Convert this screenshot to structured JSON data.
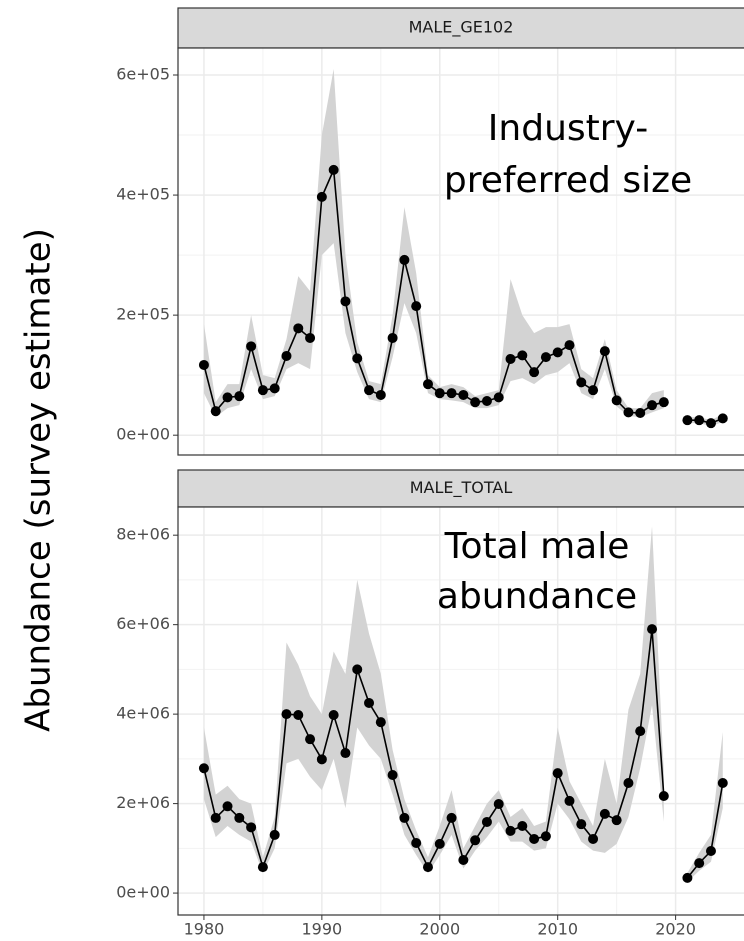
{
  "y_label": "Abundance (survey estimate)",
  "chart_data": [
    {
      "type": "line",
      "strip": "MALE_GE102",
      "annotation": [
        "Industry-",
        "preferred size"
      ],
      "color": "#000000",
      "ribbon_color": "#d3d3d3",
      "grid": true,
      "x": [
        1980,
        1981,
        1982,
        1983,
        1984,
        1985,
        1986,
        1987,
        1988,
        1989,
        1990,
        1991,
        1992,
        1993,
        1994,
        1995,
        1996,
        1997,
        1998,
        1999,
        2000,
        2001,
        2002,
        2003,
        2004,
        2005,
        2006,
        2007,
        2008,
        2009,
        2010,
        2011,
        2012,
        2013,
        2014,
        2015,
        2016,
        2017,
        2018,
        2019,
        2020,
        2021,
        2022,
        2023,
        2024
      ],
      "values": [
        117000,
        40000,
        63000,
        65000,
        148000,
        75000,
        78000,
        132000,
        178000,
        162000,
        397000,
        442000,
        223000,
        128000,
        75000,
        67000,
        162000,
        292000,
        215000,
        85000,
        70000,
        70000,
        67000,
        55000,
        57000,
        63000,
        127000,
        133000,
        105000,
        130000,
        138000,
        150000,
        88000,
        75000,
        140000,
        58000,
        38000,
        37000,
        50000,
        55000,
        null,
        25000,
        25000,
        20000,
        28000
      ],
      "upper": [
        185000,
        55000,
        85000,
        85000,
        200000,
        100000,
        95000,
        160000,
        265000,
        240000,
        500000,
        610000,
        300000,
        155000,
        90000,
        85000,
        200000,
        380000,
        270000,
        100000,
        80000,
        85000,
        80000,
        65000,
        70000,
        75000,
        260000,
        200000,
        170000,
        180000,
        180000,
        185000,
        110000,
        95000,
        160000,
        75000,
        45000,
        45000,
        70000,
        75000,
        null,
        30000,
        30000,
        25000,
        35000
      ],
      "lower": [
        70000,
        30000,
        45000,
        50000,
        110000,
        60000,
        65000,
        110000,
        120000,
        110000,
        300000,
        320000,
        170000,
        105000,
        60000,
        55000,
        130000,
        220000,
        170000,
        70000,
        60000,
        58000,
        55000,
        45000,
        45000,
        50000,
        90000,
        95000,
        85000,
        100000,
        105000,
        120000,
        70000,
        60000,
        110000,
        48000,
        32000,
        30000,
        38000,
        45000,
        null,
        20000,
        20000,
        15000,
        22000
      ],
      "xlim": [
        1977.8,
        2025.8
      ],
      "xticks": [
        1980,
        1990,
        2000,
        2010,
        2020
      ],
      "ylim": [
        -33000,
        645000
      ],
      "yticks": [
        {
          "value": 0,
          "label": "0e+00"
        },
        {
          "value": 200000,
          "label": "2e+05"
        },
        {
          "value": 400000,
          "label": "4e+05"
        },
        {
          "value": 600000,
          "label": "6e+05"
        }
      ]
    },
    {
      "type": "line",
      "strip": "MALE_TOTAL",
      "annotation": [
        "Total male",
        "abundance"
      ],
      "color": "#000000",
      "ribbon_color": "#d3d3d3",
      "grid": true,
      "x": [
        1980,
        1981,
        1982,
        1983,
        1984,
        1985,
        1986,
        1987,
        1988,
        1989,
        1990,
        1991,
        1992,
        1993,
        1994,
        1995,
        1996,
        1997,
        1998,
        1999,
        2000,
        2001,
        2002,
        2003,
        2004,
        2005,
        2006,
        2007,
        2008,
        2009,
        2010,
        2011,
        2012,
        2013,
        2014,
        2015,
        2016,
        2017,
        2018,
        2019,
        2020,
        2021,
        2022,
        2023,
        2024
      ],
      "values": [
        2790000,
        1680000,
        1940000,
        1680000,
        1470000,
        580000,
        1300000,
        4000000,
        3980000,
        3440000,
        2990000,
        3980000,
        3130000,
        5000000,
        4250000,
        3820000,
        2640000,
        1680000,
        1120000,
        580000,
        1100000,
        1680000,
        740000,
        1180000,
        1590000,
        1990000,
        1390000,
        1500000,
        1210000,
        1270000,
        2680000,
        2060000,
        1540000,
        1210000,
        1770000,
        1630000,
        2460000,
        3620000,
        5900000,
        2170000,
        null,
        340000,
        670000,
        940000,
        2460000
      ],
      "upper": [
        3700000,
        2200000,
        2400000,
        2100000,
        2000000,
        800000,
        1700000,
        5600000,
        5100000,
        4400000,
        4000000,
        5400000,
        4900000,
        7000000,
        5800000,
        4900000,
        3200000,
        2100000,
        1400000,
        800000,
        1500000,
        2300000,
        1000000,
        1500000,
        2000000,
        2300000,
        1700000,
        1900000,
        1500000,
        1600000,
        3700000,
        2500000,
        2000000,
        1500000,
        3000000,
        2000000,
        4100000,
        4900000,
        8200000,
        2700000,
        null,
        450000,
        900000,
        1300000,
        3600000
      ],
      "lower": [
        2100000,
        1250000,
        1500000,
        1300000,
        1150000,
        450000,
        1000000,
        2900000,
        3000000,
        2600000,
        2300000,
        3000000,
        1900000,
        3700000,
        3300000,
        3000000,
        2200000,
        1300000,
        850000,
        450000,
        850000,
        1300000,
        550000,
        950000,
        1250000,
        1600000,
        1150000,
        1150000,
        950000,
        1000000,
        2000000,
        1650000,
        1150000,
        950000,
        900000,
        1100000,
        1700000,
        2800000,
        4200000,
        1600000,
        null,
        250000,
        500000,
        700000,
        1900000
      ],
      "xlim": [
        1977.8,
        2025.8
      ],
      "xticks": [
        1980,
        1990,
        2000,
        2010,
        2020
      ],
      "ylim": [
        -490000,
        8630000
      ],
      "yticks": [
        {
          "value": 0,
          "label": "0e+00"
        },
        {
          "value": 2000000,
          "label": "2e+06"
        },
        {
          "value": 4000000,
          "label": "4e+06"
        },
        {
          "value": 6000000,
          "label": "6e+06"
        },
        {
          "value": 8000000,
          "label": "8e+06"
        }
      ]
    }
  ]
}
